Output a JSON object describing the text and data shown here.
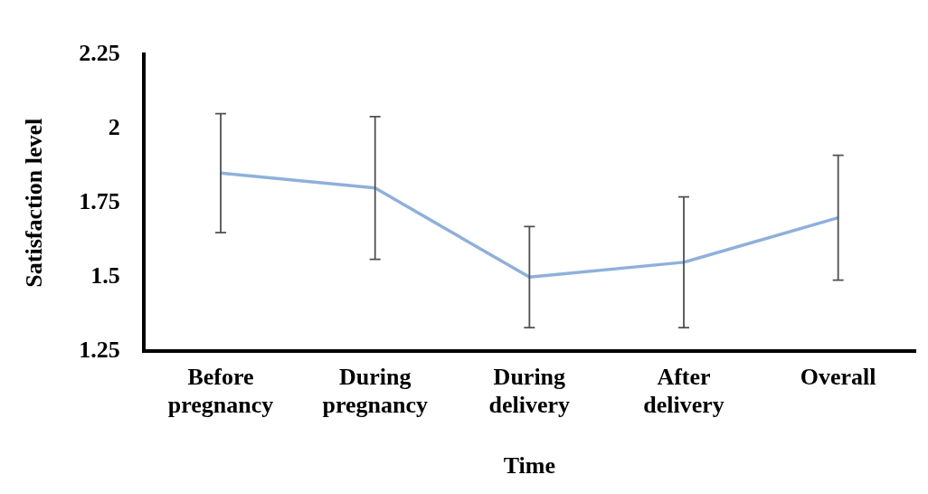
{
  "chart_data": {
    "type": "line",
    "xlabel": "Time",
    "ylabel": "Satisfaction level",
    "categories": [
      "Before pregnancy",
      "During pregnancy",
      "During delivery",
      "After delivery",
      "Overall"
    ],
    "series": [
      {
        "color": "#8fb0da",
        "values": [
          1.85,
          1.8,
          1.5,
          1.55,
          1.7
        ],
        "errors": [
          0.2,
          0.24,
          0.17,
          0.22,
          0.21
        ]
      }
    ],
    "ylim": [
      1.25,
      2.25
    ],
    "yticks": [
      1.25,
      1.5,
      1.75,
      2,
      2.25
    ],
    "grid": false,
    "legend": false,
    "marker": "none",
    "line_style": "solid"
  }
}
